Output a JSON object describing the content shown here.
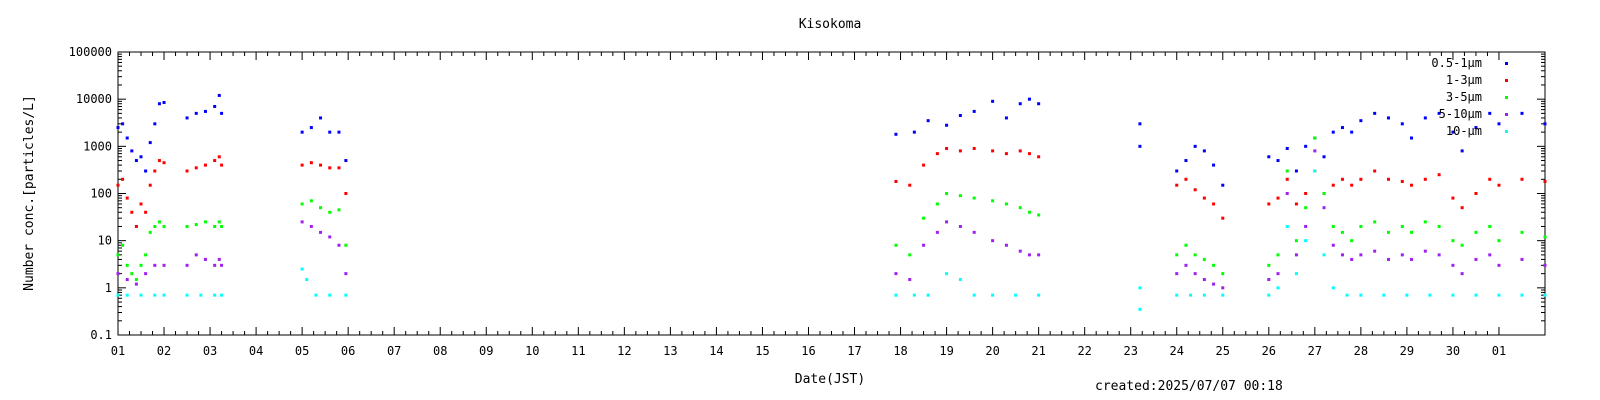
{
  "chart_data": {
    "type": "scatter",
    "title": "Kisokoma",
    "xlabel": "Date(JST)",
    "ylabel": "Number conc.[particles/L]",
    "xlim": [
      1,
      32
    ],
    "ylim": [
      0.1,
      100000
    ],
    "yscale": "log",
    "x_ticks": [
      "01",
      "02",
      "03",
      "04",
      "05",
      "06",
      "07",
      "08",
      "09",
      "10",
      "11",
      "12",
      "13",
      "14",
      "15",
      "16",
      "17",
      "18",
      "19",
      "20",
      "21",
      "22",
      "23",
      "24",
      "25",
      "26",
      "27",
      "28",
      "29",
      "30",
      "01"
    ],
    "y_ticks": [
      {
        "value": 0.1,
        "label": "0.1"
      },
      {
        "value": 1,
        "label": "1"
      },
      {
        "value": 10,
        "label": "10"
      },
      {
        "value": 100,
        "label": "100"
      },
      {
        "value": 1000,
        "label": "1000"
      },
      {
        "value": 10000,
        "label": "10000"
      },
      {
        "value": 100000,
        "label": "100000"
      }
    ],
    "legend_position": "top-right",
    "series": [
      {
        "name": "0.5-1μm",
        "color": "#0000ff",
        "points": [
          [
            1.0,
            2500
          ],
          [
            1.1,
            3000
          ],
          [
            1.2,
            1500
          ],
          [
            1.3,
            800
          ],
          [
            1.4,
            500
          ],
          [
            1.5,
            600
          ],
          [
            1.6,
            300
          ],
          [
            1.7,
            1200
          ],
          [
            1.8,
            3000
          ],
          [
            1.9,
            8000
          ],
          [
            2.0,
            8500
          ],
          [
            2.5,
            4000
          ],
          [
            2.7,
            5000
          ],
          [
            2.9,
            5500
          ],
          [
            3.1,
            7000
          ],
          [
            3.2,
            12000
          ],
          [
            3.25,
            5000
          ],
          [
            5.0,
            2000
          ],
          [
            5.2,
            2500
          ],
          [
            5.4,
            4000
          ],
          [
            5.6,
            2000
          ],
          [
            5.8,
            2000
          ],
          [
            5.95,
            500
          ],
          [
            17.9,
            1800
          ],
          [
            18.3,
            2000
          ],
          [
            18.6,
            3500
          ],
          [
            19.0,
            2800
          ],
          [
            19.3,
            4500
          ],
          [
            19.6,
            5500
          ],
          [
            20.0,
            9000
          ],
          [
            20.3,
            4000
          ],
          [
            20.6,
            8000
          ],
          [
            20.8,
            10000
          ],
          [
            21.0,
            8000
          ],
          [
            23.2,
            3000
          ],
          [
            23.2,
            1000
          ],
          [
            24.0,
            300
          ],
          [
            24.2,
            500
          ],
          [
            24.4,
            1000
          ],
          [
            24.6,
            800
          ],
          [
            24.8,
            400
          ],
          [
            25.0,
            150
          ],
          [
            26.0,
            600
          ],
          [
            26.2,
            500
          ],
          [
            26.4,
            900
          ],
          [
            26.6,
            300
          ],
          [
            26.8,
            1000
          ],
          [
            27.0,
            1500
          ],
          [
            27.2,
            600
          ],
          [
            27.4,
            2000
          ],
          [
            27.6,
            2500
          ],
          [
            27.8,
            2000
          ],
          [
            28.0,
            3500
          ],
          [
            28.3,
            5000
          ],
          [
            28.6,
            4000
          ],
          [
            28.9,
            3000
          ],
          [
            29.1,
            1500
          ],
          [
            29.4,
            4000
          ],
          [
            29.7,
            5000
          ],
          [
            30.0,
            2000
          ],
          [
            30.2,
            800
          ],
          [
            30.5,
            2500
          ],
          [
            30.8,
            5000
          ],
          [
            31.0,
            3000
          ],
          [
            31.5,
            5000
          ],
          [
            32.0,
            3000
          ]
        ]
      },
      {
        "name": "1-3μm",
        "color": "#ff0000",
        "points": [
          [
            1.0,
            150
          ],
          [
            1.1,
            200
          ],
          [
            1.2,
            80
          ],
          [
            1.3,
            40
          ],
          [
            1.4,
            20
          ],
          [
            1.5,
            60
          ],
          [
            1.6,
            40
          ],
          [
            1.7,
            150
          ],
          [
            1.8,
            300
          ],
          [
            1.9,
            500
          ],
          [
            2.0,
            450
          ],
          [
            2.5,
            300
          ],
          [
            2.7,
            350
          ],
          [
            2.9,
            400
          ],
          [
            3.1,
            500
          ],
          [
            3.2,
            600
          ],
          [
            3.25,
            400
          ],
          [
            5.0,
            400
          ],
          [
            5.2,
            450
          ],
          [
            5.4,
            400
          ],
          [
            5.6,
            350
          ],
          [
            5.8,
            350
          ],
          [
            5.95,
            100
          ],
          [
            17.9,
            180
          ],
          [
            18.2,
            150
          ],
          [
            18.5,
            400
          ],
          [
            18.8,
            700
          ],
          [
            19.0,
            900
          ],
          [
            19.3,
            800
          ],
          [
            19.6,
            900
          ],
          [
            20.0,
            800
          ],
          [
            20.3,
            700
          ],
          [
            20.6,
            800
          ],
          [
            20.8,
            700
          ],
          [
            21.0,
            600
          ],
          [
            24.0,
            150
          ],
          [
            24.2,
            200
          ],
          [
            24.4,
            120
          ],
          [
            24.6,
            80
          ],
          [
            24.8,
            60
          ],
          [
            25.0,
            30
          ],
          [
            26.0,
            60
          ],
          [
            26.2,
            80
          ],
          [
            26.4,
            200
          ],
          [
            26.6,
            60
          ],
          [
            26.8,
            100
          ],
          [
            27.0,
            300
          ],
          [
            27.2,
            100
          ],
          [
            27.4,
            150
          ],
          [
            27.6,
            200
          ],
          [
            27.8,
            150
          ],
          [
            28.0,
            200
          ],
          [
            28.3,
            300
          ],
          [
            28.6,
            200
          ],
          [
            28.9,
            180
          ],
          [
            29.1,
            150
          ],
          [
            29.4,
            200
          ],
          [
            29.7,
            250
          ],
          [
            30.0,
            80
          ],
          [
            30.2,
            50
          ],
          [
            30.5,
            100
          ],
          [
            30.8,
            200
          ],
          [
            31.0,
            150
          ],
          [
            31.5,
            200
          ],
          [
            32.0,
            180
          ]
        ]
      },
      {
        "name": "3-5μm",
        "color": "#00ff00",
        "points": [
          [
            1.0,
            5
          ],
          [
            1.1,
            8
          ],
          [
            1.2,
            3
          ],
          [
            1.3,
            2
          ],
          [
            1.4,
            1.5
          ],
          [
            1.5,
            3
          ],
          [
            1.6,
            5
          ],
          [
            1.7,
            15
          ],
          [
            1.8,
            20
          ],
          [
            1.9,
            25
          ],
          [
            2.0,
            20
          ],
          [
            2.5,
            20
          ],
          [
            2.7,
            22
          ],
          [
            2.9,
            25
          ],
          [
            3.1,
            20
          ],
          [
            3.2,
            25
          ],
          [
            3.25,
            20
          ],
          [
            5.0,
            60
          ],
          [
            5.2,
            70
          ],
          [
            5.4,
            50
          ],
          [
            5.6,
            40
          ],
          [
            5.8,
            45
          ],
          [
            5.95,
            8
          ],
          [
            17.9,
            8
          ],
          [
            18.2,
            5
          ],
          [
            18.5,
            30
          ],
          [
            18.8,
            60
          ],
          [
            19.0,
            100
          ],
          [
            19.3,
            90
          ],
          [
            19.6,
            80
          ],
          [
            20.0,
            70
          ],
          [
            20.3,
            60
          ],
          [
            20.6,
            50
          ],
          [
            20.8,
            40
          ],
          [
            21.0,
            35
          ],
          [
            24.0,
            5
          ],
          [
            24.2,
            8
          ],
          [
            24.4,
            5
          ],
          [
            24.6,
            4
          ],
          [
            24.8,
            3
          ],
          [
            25.0,
            2
          ],
          [
            26.0,
            3
          ],
          [
            26.2,
            5
          ],
          [
            26.4,
            300
          ],
          [
            26.6,
            10
          ],
          [
            26.8,
            50
          ],
          [
            27.0,
            1500
          ],
          [
            27.2,
            100
          ],
          [
            27.4,
            20
          ],
          [
            27.6,
            15
          ],
          [
            27.8,
            10
          ],
          [
            28.0,
            20
          ],
          [
            28.3,
            25
          ],
          [
            28.6,
            15
          ],
          [
            28.9,
            20
          ],
          [
            29.1,
            15
          ],
          [
            29.4,
            25
          ],
          [
            29.7,
            20
          ],
          [
            30.0,
            10
          ],
          [
            30.2,
            8
          ],
          [
            30.5,
            15
          ],
          [
            30.8,
            20
          ],
          [
            31.0,
            10
          ],
          [
            31.5,
            15
          ],
          [
            32.0,
            12
          ]
        ]
      },
      {
        "name": "5-10μm",
        "color": "#a020f0",
        "points": [
          [
            1.0,
            2
          ],
          [
            1.2,
            1.5
          ],
          [
            1.4,
            1.2
          ],
          [
            1.6,
            2
          ],
          [
            1.8,
            3
          ],
          [
            2.0,
            3
          ],
          [
            2.5,
            3
          ],
          [
            2.7,
            5
          ],
          [
            2.9,
            4
          ],
          [
            3.1,
            3
          ],
          [
            3.2,
            4
          ],
          [
            3.25,
            3
          ],
          [
            5.0,
            25
          ],
          [
            5.2,
            20
          ],
          [
            5.4,
            15
          ],
          [
            5.6,
            12
          ],
          [
            5.8,
            8
          ],
          [
            5.95,
            2
          ],
          [
            17.9,
            2
          ],
          [
            18.2,
            1.5
          ],
          [
            18.5,
            8
          ],
          [
            18.8,
            15
          ],
          [
            19.0,
            25
          ],
          [
            19.3,
            20
          ],
          [
            19.6,
            15
          ],
          [
            20.0,
            10
          ],
          [
            20.3,
            8
          ],
          [
            20.6,
            6
          ],
          [
            20.8,
            5
          ],
          [
            21.0,
            5
          ],
          [
            24.0,
            2
          ],
          [
            24.2,
            3
          ],
          [
            24.4,
            2
          ],
          [
            24.6,
            1.5
          ],
          [
            24.8,
            1.2
          ],
          [
            25.0,
            1
          ],
          [
            26.0,
            1.5
          ],
          [
            26.2,
            2
          ],
          [
            26.4,
            100
          ],
          [
            26.6,
            5
          ],
          [
            26.8,
            20
          ],
          [
            27.0,
            800
          ],
          [
            27.2,
            50
          ],
          [
            27.4,
            8
          ],
          [
            27.6,
            5
          ],
          [
            27.8,
            4
          ],
          [
            28.0,
            5
          ],
          [
            28.3,
            6
          ],
          [
            28.6,
            4
          ],
          [
            28.9,
            5
          ],
          [
            29.1,
            4
          ],
          [
            29.4,
            6
          ],
          [
            29.7,
            5
          ],
          [
            30.0,
            3
          ],
          [
            30.2,
            2
          ],
          [
            30.5,
            4
          ],
          [
            30.8,
            5
          ],
          [
            31.0,
            3
          ],
          [
            31.5,
            4
          ],
          [
            32.0,
            3
          ]
        ]
      },
      {
        "name": "10-μm",
        "color": "#00ffff",
        "points": [
          [
            1.0,
            0.7
          ],
          [
            1.2,
            0.7
          ],
          [
            1.5,
            0.7
          ],
          [
            1.8,
            0.7
          ],
          [
            2.0,
            0.7
          ],
          [
            2.5,
            0.7
          ],
          [
            2.8,
            0.7
          ],
          [
            3.1,
            0.7
          ],
          [
            3.25,
            0.7
          ],
          [
            5.0,
            2.5
          ],
          [
            5.1,
            1.5
          ],
          [
            5.3,
            0.7
          ],
          [
            5.6,
            0.7
          ],
          [
            5.95,
            0.7
          ],
          [
            17.9,
            0.7
          ],
          [
            18.3,
            0.7
          ],
          [
            18.6,
            0.7
          ],
          [
            19.0,
            2
          ],
          [
            19.3,
            1.5
          ],
          [
            19.6,
            0.7
          ],
          [
            20.0,
            0.7
          ],
          [
            20.5,
            0.7
          ],
          [
            21.0,
            0.7
          ],
          [
            23.2,
            0.35
          ],
          [
            23.2,
            1
          ],
          [
            24.0,
            0.7
          ],
          [
            24.3,
            0.7
          ],
          [
            24.6,
            0.7
          ],
          [
            25.0,
            0.7
          ],
          [
            26.0,
            0.7
          ],
          [
            26.2,
            1
          ],
          [
            26.4,
            20
          ],
          [
            26.6,
            2
          ],
          [
            26.8,
            10
          ],
          [
            27.0,
            300
          ],
          [
            27.2,
            5
          ],
          [
            27.4,
            1
          ],
          [
            27.7,
            0.7
          ],
          [
            28.0,
            0.7
          ],
          [
            28.5,
            0.7
          ],
          [
            29.0,
            0.7
          ],
          [
            29.5,
            0.7
          ],
          [
            30.0,
            0.7
          ],
          [
            30.5,
            0.7
          ],
          [
            31.0,
            0.7
          ],
          [
            31.5,
            0.7
          ],
          [
            32.0,
            0.7
          ]
        ]
      }
    ]
  },
  "footer": {
    "created_label": "created:2025/07/07 00:18"
  }
}
